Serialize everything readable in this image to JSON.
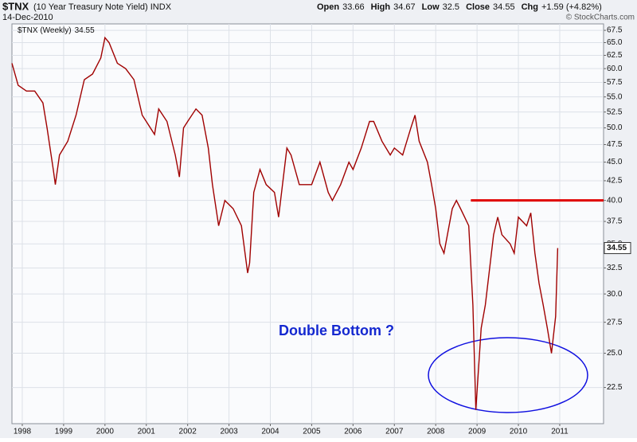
{
  "chart_data": {
    "type": "line",
    "symbol": "$TNX",
    "title": "(10 Year Treasury Note Yield) INDX",
    "date": "14-Dec-2010",
    "source": "© StockCharts.com",
    "quote": [
      {
        "label": "Open",
        "value": 33.66
      },
      {
        "label": "High",
        "value": 34.67
      },
      {
        "label": "Low",
        "value": 32.5
      },
      {
        "label": "Close",
        "value": 34.55
      },
      {
        "label": "Chg",
        "value": "+1.59 (+4.82%)"
      }
    ],
    "annotation": "Double Bottom ?",
    "x": [
      1997.75,
      1997.9,
      1998.1,
      1998.3,
      1998.5,
      1998.6,
      1998.75,
      1998.8,
      1998.9,
      1999.1,
      1999.3,
      1999.5,
      1999.7,
      1999.9,
      2000.0,
      2000.1,
      2000.3,
      2000.5,
      2000.7,
      2000.9,
      2001.0,
      2001.2,
      2001.3,
      2001.5,
      2001.7,
      2001.8,
      2001.9,
      2002.0,
      2002.2,
      2002.35,
      2002.5,
      2002.6,
      2002.75,
      2002.9,
      2003.1,
      2003.3,
      2003.45,
      2003.5,
      2003.6,
      2003.75,
      2003.9,
      2004.1,
      2004.2,
      2004.4,
      2004.5,
      2004.7,
      2004.9,
      2005.0,
      2005.2,
      2005.4,
      2005.5,
      2005.7,
      2005.9,
      2006.0,
      2006.2,
      2006.4,
      2006.5,
      2006.7,
      2006.9,
      2007.0,
      2007.2,
      2007.4,
      2007.5,
      2007.6,
      2007.8,
      2007.9,
      2008.0,
      2008.1,
      2008.2,
      2008.4,
      2008.5,
      2008.6,
      2008.7,
      2008.8,
      2008.9,
      2008.97,
      2009.1,
      2009.2,
      2009.4,
      2009.5,
      2009.6,
      2009.8,
      2009.9,
      2010.0,
      2010.2,
      2010.3,
      2010.4,
      2010.5,
      2010.6,
      2010.7,
      2010.8,
      2010.9,
      2010.95
    ],
    "series": [
      {
        "name": "$TNX (Weekly)",
        "color": "#a00000",
        "values": [
          61,
          57,
          56,
          56,
          54,
          50,
          44,
          42,
          46,
          48,
          52,
          58,
          59,
          62,
          66,
          65,
          61,
          60,
          58,
          52,
          51,
          49,
          53,
          51,
          46,
          43,
          50,
          51,
          53,
          52,
          47,
          42,
          37,
          40,
          39,
          37,
          32,
          33,
          41,
          44,
          42,
          41,
          38,
          47,
          46,
          42,
          42,
          42,
          45,
          41,
          40,
          42,
          45,
          44,
          47,
          51,
          51,
          48,
          46,
          47,
          46,
          50,
          52,
          48,
          45,
          42,
          39,
          35,
          34,
          39,
          40,
          39,
          38,
          37,
          29,
          21,
          27,
          29,
          36,
          38,
          36,
          35,
          34,
          38,
          37,
          38.5,
          34,
          31,
          29,
          27,
          25,
          28,
          34.55
        ]
      }
    ],
    "resistance": {
      "value": 40,
      "x_start": 2008.85,
      "color": "#e00000"
    },
    "xlim": [
      1997.75,
      2012.06
    ],
    "xticks": [
      1998,
      1999,
      2000,
      2001,
      2002,
      2003,
      2004,
      2005,
      2006,
      2007,
      2008,
      2009,
      2010,
      2011
    ],
    "ylim": [
      20.13,
      68.85
    ],
    "yticks": [
      22.5,
      {
        "value": 25,
        "label": "25.0"
      },
      27.5,
      {
        "value": 30,
        "label": "30.0"
      },
      32.5,
      {
        "value": 35,
        "label": "35.0"
      },
      37.5,
      {
        "value": 40,
        "label": "40.0"
      },
      42.5,
      {
        "value": 45,
        "label": "45.0"
      },
      47.5,
      {
        "value": 50,
        "label": "50.0"
      },
      52.5,
      {
        "value": 55,
        "label": "55.0"
      },
      57.5,
      {
        "value": 60,
        "label": "60.0"
      },
      62.5,
      {
        "value": 65,
        "label": "65.0"
      },
      67.5
    ],
    "log_scale": true,
    "grid": true
  }
}
